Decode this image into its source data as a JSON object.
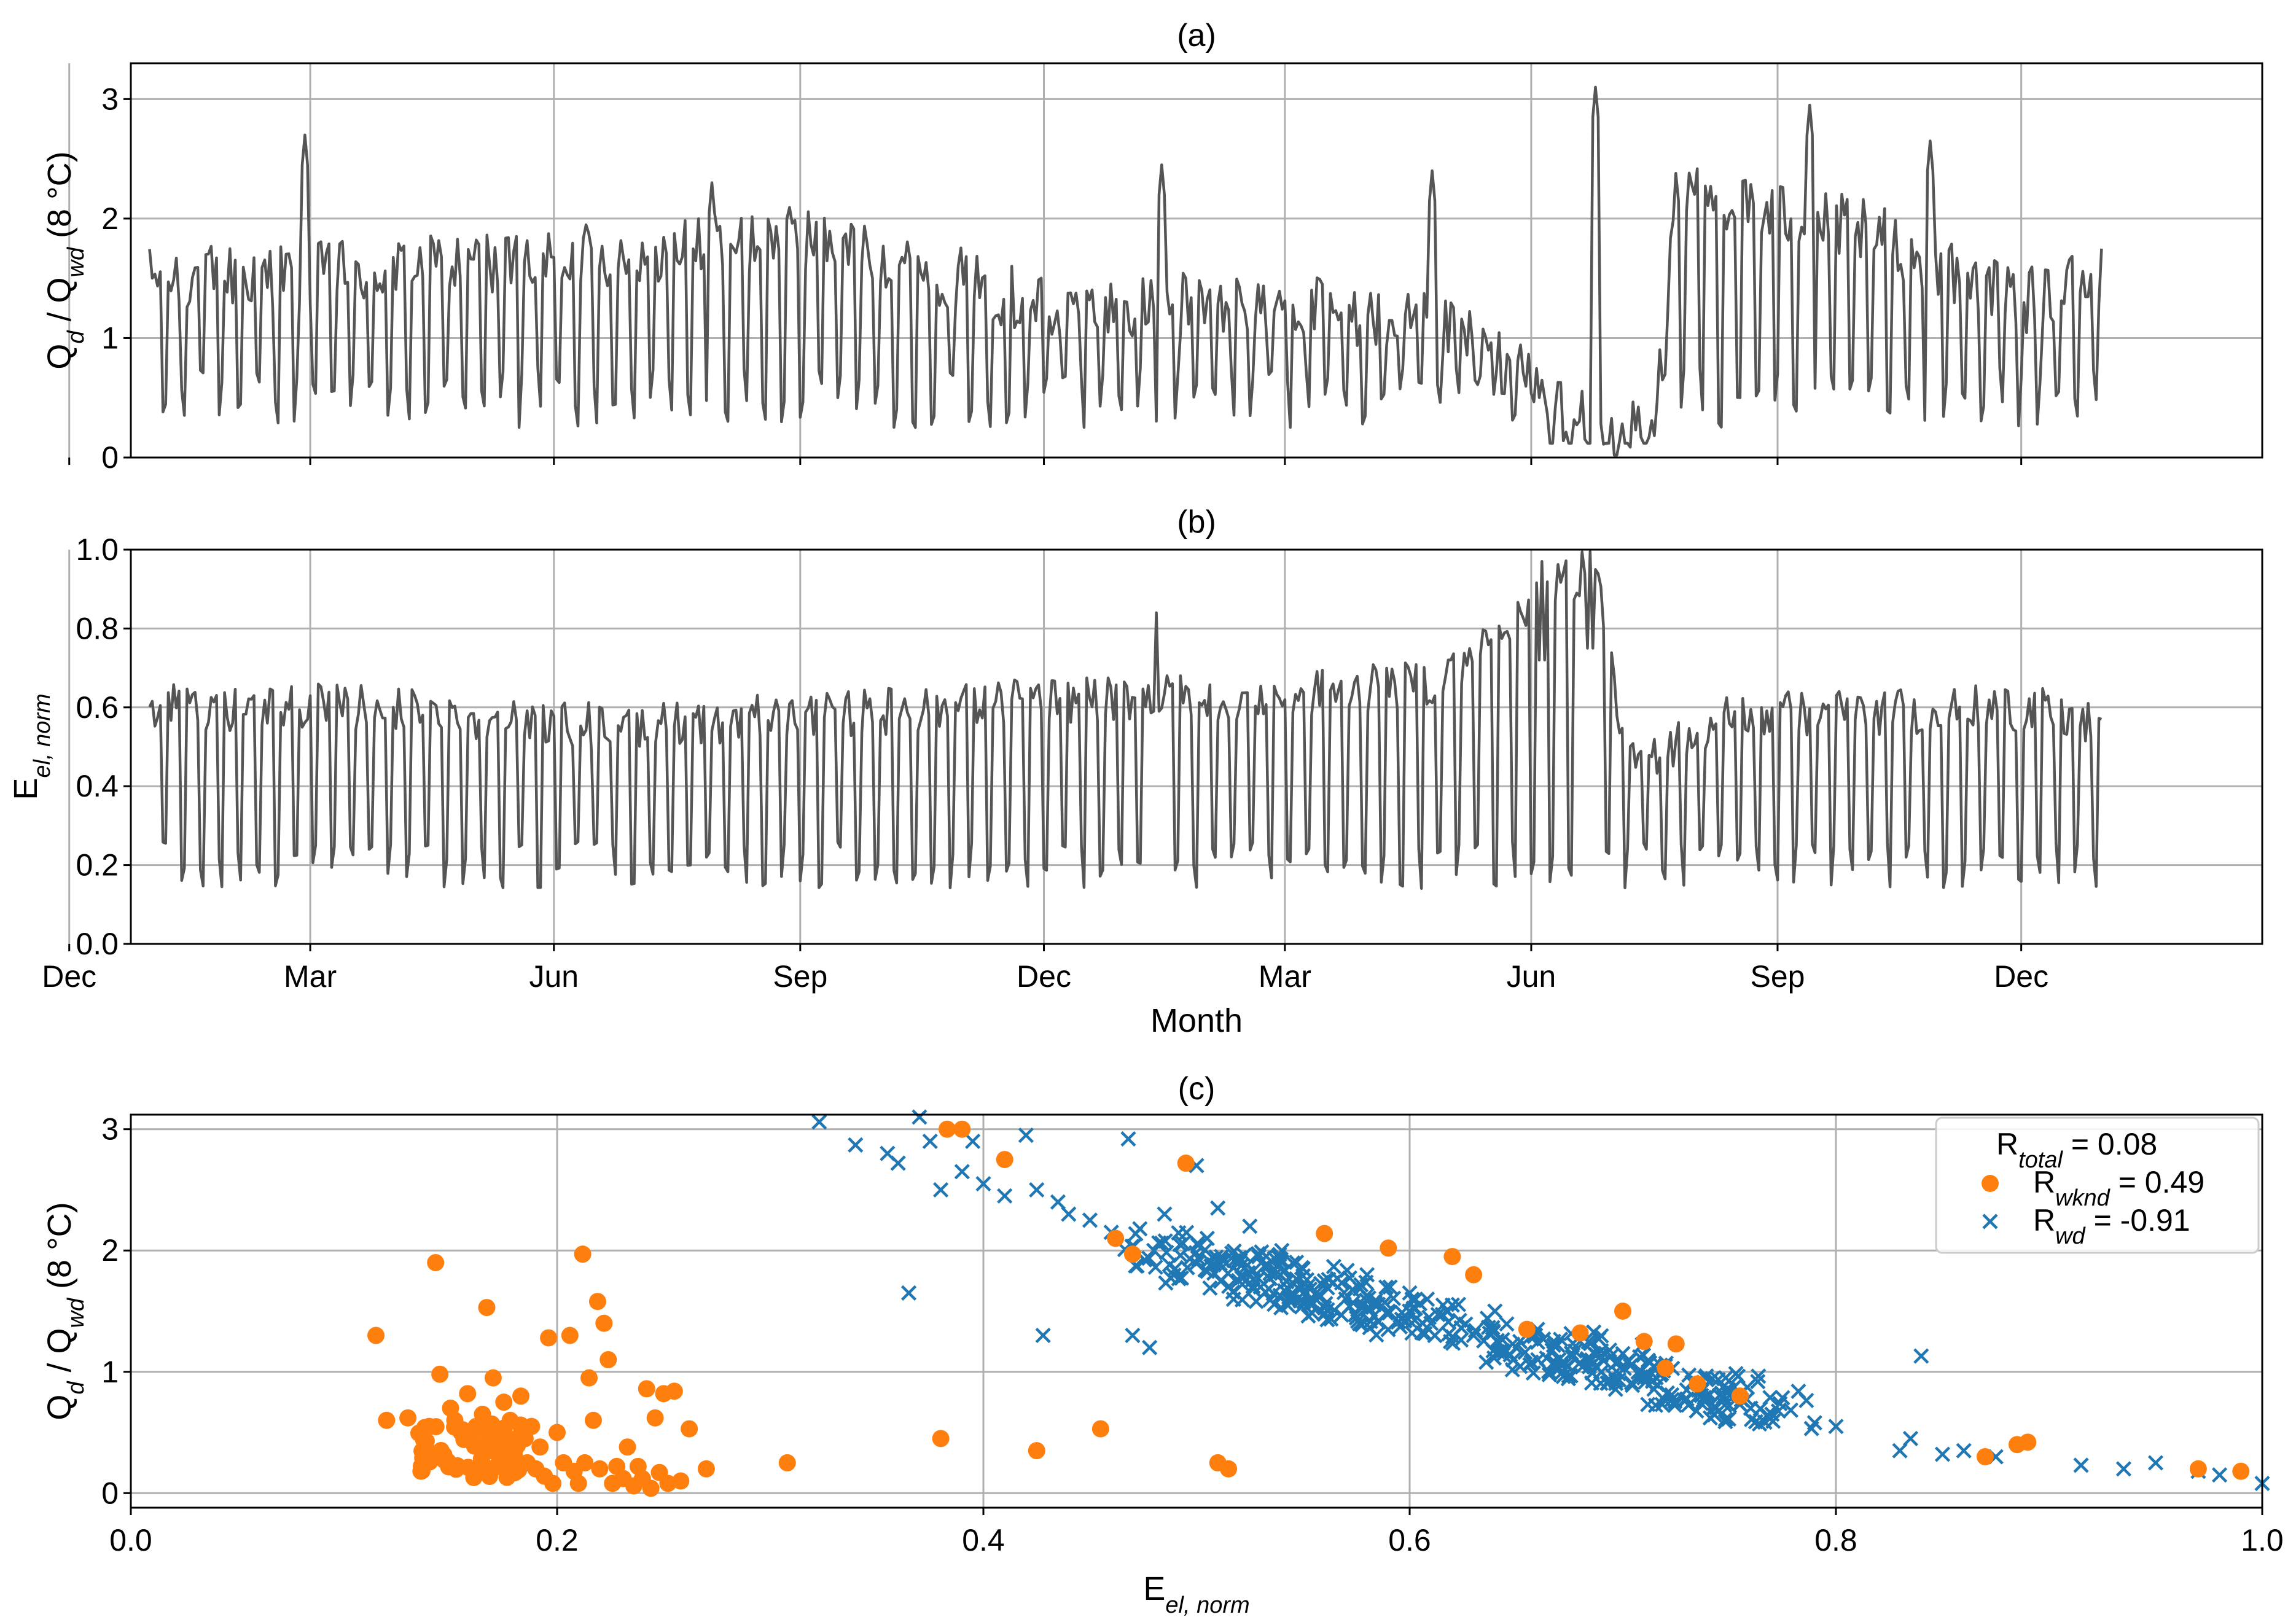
{
  "colors": {
    "line": "#555555",
    "weekend": "#ff7f0e",
    "weekday": "#1f77b4",
    "grid": "#b0b0b0"
  },
  "chart_data": [
    {
      "id": "a",
      "type": "line",
      "title": "(a)",
      "ylabel": {
        "base": "Q",
        "sub1": "d",
        "mid": " / Q",
        "sub2": "wd",
        "tail": " (8 °C)"
      },
      "xlabel": "",
      "x_unit": "day index (month ticks)",
      "xlim": [
        -7,
        789
      ],
      "ylim": [
        0,
        3.3
      ],
      "yticks": [
        0,
        1,
        2,
        3
      ],
      "ytick_labels": [
        "0",
        "1",
        "2",
        "3"
      ],
      "xticks": [
        -30,
        60,
        151,
        243,
        334,
        424,
        516,
        608,
        699
      ],
      "grid": true,
      "series": [
        {
          "name": "Qd/Qwd (8 °C)",
          "x_start": 0,
          "x_end": 729,
          "segments": [
            [
              0,
              1.5
            ],
            [
              84,
              1.55
            ],
            [
              168,
              1.7
            ],
            [
              252,
              1.85
            ],
            [
              336,
              1.25
            ],
            [
              420,
              1.3
            ],
            [
              490,
              1.05
            ],
            [
              520,
              0.55
            ],
            [
              540,
              0.2
            ],
            [
              562,
              0.2
            ],
            [
              570,
              2.2
            ],
            [
              640,
              1.9
            ],
            [
              700,
              1.3
            ],
            [
              729,
              1.5
            ]
          ],
          "weekend_low_pattern": "weekly dips toward 0.2-0.6, lower (about 0.1) after Jun of year 2",
          "peaks": [
            [
              58,
              2.7
            ],
            [
              210,
              2.3
            ],
            [
              378,
              2.45
            ],
            [
              479,
              2.4
            ],
            [
              540,
              3.1
            ],
            [
              620,
              2.95
            ],
            [
              665,
              2.65
            ]
          ]
        }
      ]
    },
    {
      "id": "b",
      "type": "line",
      "title": "(b)",
      "ylabel": {
        "base": "E",
        "sub": "el, norm"
      },
      "xlabel": "Month",
      "xlim": [
        -7,
        789
      ],
      "ylim": [
        0,
        1.0
      ],
      "yticks": [
        0,
        0.2,
        0.4,
        0.6,
        0.8,
        1.0
      ],
      "ytick_labels": [
        "0.0",
        "0.2",
        "0.4",
        "0.6",
        "0.8",
        "1.0"
      ],
      "xticks": [
        -30,
        60,
        151,
        243,
        334,
        424,
        516,
        608,
        699
      ],
      "xtick_labels": [
        "Dec",
        "Mar",
        "Jun",
        "Sep",
        "Dec",
        "Mar",
        "Jun",
        "Sep",
        "Dec"
      ],
      "grid": true,
      "series": [
        {
          "name": "E_el,norm",
          "x_start": 0,
          "x_end": 729,
          "segments": [
            [
              0,
              0.6
            ],
            [
              84,
              0.6
            ],
            [
              168,
              0.55
            ],
            [
              252,
              0.58
            ],
            [
              336,
              0.62
            ],
            [
              420,
              0.63
            ],
            [
              480,
              0.66
            ],
            [
              520,
              0.9
            ],
            [
              540,
              0.95
            ],
            [
              552,
              0.45
            ],
            [
              590,
              0.58
            ],
            [
              700,
              0.6
            ],
            [
              729,
              0.55
            ]
          ],
          "weekend_low_pattern": "weekly dips toward 0.12-0.25",
          "peaks": [
            [
              376,
              0.84
            ],
            [
              520,
              0.97
            ],
            [
              538,
              1.0
            ]
          ]
        }
      ]
    },
    {
      "id": "c",
      "type": "scatter",
      "title": "(c)",
      "ylabel": {
        "base": "Q",
        "sub1": "d",
        "mid": " / Q",
        "sub2": "wd",
        "tail": " (8 °C)"
      },
      "xlabel": {
        "base": "E",
        "sub": "el, norm"
      },
      "xlim": [
        0.0,
        1.0
      ],
      "ylim": [
        -0.12,
        3.12
      ],
      "xticks": [
        0.0,
        0.2,
        0.4,
        0.6,
        0.8,
        1.0
      ],
      "xtick_labels": [
        "0.0",
        "0.2",
        "0.4",
        "0.6",
        "0.8",
        "1.0"
      ],
      "yticks": [
        0,
        1,
        2,
        3
      ],
      "ytick_labels": [
        "0",
        "1",
        "2",
        "3"
      ],
      "grid": true,
      "legend": {
        "placement": "top-right",
        "entries": [
          {
            "symbol": "none",
            "base": "R",
            "sub": "total",
            "value": " = 0.08"
          },
          {
            "symbol": "circle",
            "series": "weekend",
            "base": "R",
            "sub": "wknd",
            "value": " = 0.49"
          },
          {
            "symbol": "x",
            "series": "weekday",
            "base": "R",
            "sub": "wd",
            "value": " = -0.91"
          }
        ]
      },
      "series": [
        {
          "name": "weekend",
          "marker": "circle",
          "points": [
            [
              0.115,
              1.3
            ],
            [
              0.12,
              0.6
            ],
            [
              0.13,
              0.62
            ],
            [
              0.14,
              0.55
            ],
            [
              0.143,
              1.9
            ],
            [
              0.145,
              0.98
            ],
            [
              0.15,
              0.7
            ],
            [
              0.152,
              0.6
            ],
            [
              0.155,
              0.5
            ],
            [
              0.158,
              0.82
            ],
            [
              0.16,
              0.45
            ],
            [
              0.162,
              0.55
            ],
            [
              0.165,
              0.65
            ],
            [
              0.167,
              1.53
            ],
            [
              0.168,
              0.4
            ],
            [
              0.17,
              0.95
            ],
            [
              0.172,
              0.5
            ],
            [
              0.173,
              0.3
            ],
            [
              0.175,
              0.75
            ],
            [
              0.176,
              0.22
            ],
            [
              0.178,
              0.6
            ],
            [
              0.18,
              0.35
            ],
            [
              0.181,
              0.18
            ],
            [
              0.183,
              0.8
            ],
            [
              0.185,
              0.45
            ],
            [
              0.186,
              0.25
            ],
            [
              0.188,
              0.55
            ],
            [
              0.19,
              0.2
            ],
            [
              0.192,
              0.38
            ],
            [
              0.194,
              0.14
            ],
            [
              0.196,
              1.28
            ],
            [
              0.198,
              0.08
            ],
            [
              0.2,
              0.5
            ],
            [
              0.203,
              0.25
            ],
            [
              0.206,
              1.3
            ],
            [
              0.208,
              0.18
            ],
            [
              0.21,
              0.08
            ],
            [
              0.212,
              1.97
            ],
            [
              0.213,
              0.25
            ],
            [
              0.215,
              0.95
            ],
            [
              0.217,
              0.6
            ],
            [
              0.219,
              1.58
            ],
            [
              0.22,
              0.2
            ],
            [
              0.222,
              1.4
            ],
            [
              0.224,
              1.1
            ],
            [
              0.226,
              0.08
            ],
            [
              0.228,
              0.22
            ],
            [
              0.231,
              0.12
            ],
            [
              0.233,
              0.38
            ],
            [
              0.236,
              0.06
            ],
            [
              0.238,
              0.22
            ],
            [
              0.24,
              0.12
            ],
            [
              0.242,
              0.86
            ],
            [
              0.244,
              0.04
            ],
            [
              0.246,
              0.62
            ],
            [
              0.248,
              0.17
            ],
            [
              0.25,
              0.82
            ],
            [
              0.252,
              0.08
            ],
            [
              0.255,
              0.84
            ],
            [
              0.258,
              0.1
            ],
            [
              0.262,
              0.53
            ],
            [
              0.27,
              0.2
            ],
            [
              0.308,
              0.25
            ],
            [
              0.38,
              0.45
            ],
            [
              0.383,
              3.0
            ],
            [
              0.39,
              3.0
            ],
            [
              0.41,
              2.75
            ],
            [
              0.425,
              0.35
            ],
            [
              0.455,
              0.53
            ],
            [
              0.462,
              2.1
            ],
            [
              0.47,
              1.97
            ],
            [
              0.495,
              2.72
            ],
            [
              0.51,
              0.25
            ],
            [
              0.515,
              0.2
            ],
            [
              0.56,
              2.14
            ],
            [
              0.59,
              2.02
            ],
            [
              0.62,
              1.95
            ],
            [
              0.63,
              1.8
            ],
            [
              0.655,
              1.35
            ],
            [
              0.68,
              1.32
            ],
            [
              0.7,
              1.5
            ],
            [
              0.71,
              1.25
            ],
            [
              0.725,
              1.23
            ],
            [
              0.72,
              1.03
            ],
            [
              0.735,
              0.9
            ],
            [
              0.755,
              0.8
            ],
            [
              0.87,
              0.3
            ],
            [
              0.885,
              0.4
            ],
            [
              0.89,
              0.42
            ],
            [
              0.97,
              0.2
            ],
            [
              0.99,
              0.18
            ]
          ]
        },
        {
          "name": "weekday",
          "marker": "x",
          "trend": {
            "from": [
              0.33,
              3.0
            ],
            "to": [
              1.0,
              0.1
            ]
          },
          "points": [
            [
              0.323,
              3.06
            ],
            [
              0.34,
              2.87
            ],
            [
              0.355,
              2.8
            ],
            [
              0.36,
              2.72
            ],
            [
              0.365,
              1.65
            ],
            [
              0.37,
              3.1
            ],
            [
              0.375,
              2.9
            ],
            [
              0.38,
              2.5
            ],
            [
              0.39,
              2.65
            ],
            [
              0.395,
              2.9
            ],
            [
              0.4,
              2.55
            ],
            [
              0.41,
              2.45
            ],
            [
              0.42,
              2.95
            ],
            [
              0.425,
              2.5
            ],
            [
              0.428,
              1.3
            ],
            [
              0.435,
              2.4
            ],
            [
              0.44,
              2.3
            ],
            [
              0.45,
              2.25
            ],
            [
              0.46,
              2.15
            ],
            [
              0.468,
              2.92
            ],
            [
              0.47,
              1.3
            ],
            [
              0.478,
              1.2
            ],
            [
              0.48,
              2.0
            ],
            [
              0.485,
              2.3
            ],
            [
              0.49,
              1.85
            ],
            [
              0.5,
              2.7
            ],
            [
              0.505,
              2.1
            ],
            [
              0.51,
              2.35
            ],
            [
              0.52,
              1.9
            ],
            [
              0.525,
              2.2
            ],
            [
              0.53,
              1.7
            ],
            [
              0.54,
              2.0
            ],
            [
              0.55,
              1.85
            ],
            [
              0.56,
              1.75
            ],
            [
              0.57,
              1.6
            ],
            [
              0.58,
              1.8
            ],
            [
              0.59,
              1.5
            ],
            [
              0.6,
              1.65
            ],
            [
              0.61,
              1.4
            ],
            [
              0.62,
              1.55
            ],
            [
              0.63,
              1.3
            ],
            [
              0.64,
              1.5
            ],
            [
              0.65,
              1.2
            ],
            [
              0.66,
              1.35
            ],
            [
              0.67,
              1.1
            ],
            [
              0.68,
              1.25
            ],
            [
              0.69,
              1.0
            ],
            [
              0.7,
              1.15
            ],
            [
              0.71,
              0.95
            ],
            [
              0.72,
              1.05
            ],
            [
              0.73,
              0.85
            ],
            [
              0.74,
              0.8
            ],
            [
              0.75,
              0.72
            ],
            [
              0.76,
              0.7
            ],
            [
              0.77,
              0.65
            ],
            [
              0.79,
              0.58
            ],
            [
              0.8,
              0.55
            ],
            [
              0.83,
              0.35
            ],
            [
              0.835,
              0.45
            ],
            [
              0.84,
              1.13
            ],
            [
              0.85,
              0.32
            ],
            [
              0.86,
              0.35
            ],
            [
              0.875,
              0.3
            ],
            [
              0.915,
              0.23
            ],
            [
              0.935,
              0.2
            ],
            [
              0.95,
              0.25
            ],
            [
              0.97,
              0.18
            ],
            [
              0.98,
              0.15
            ],
            [
              1.0,
              0.08
            ]
          ]
        }
      ]
    }
  ]
}
